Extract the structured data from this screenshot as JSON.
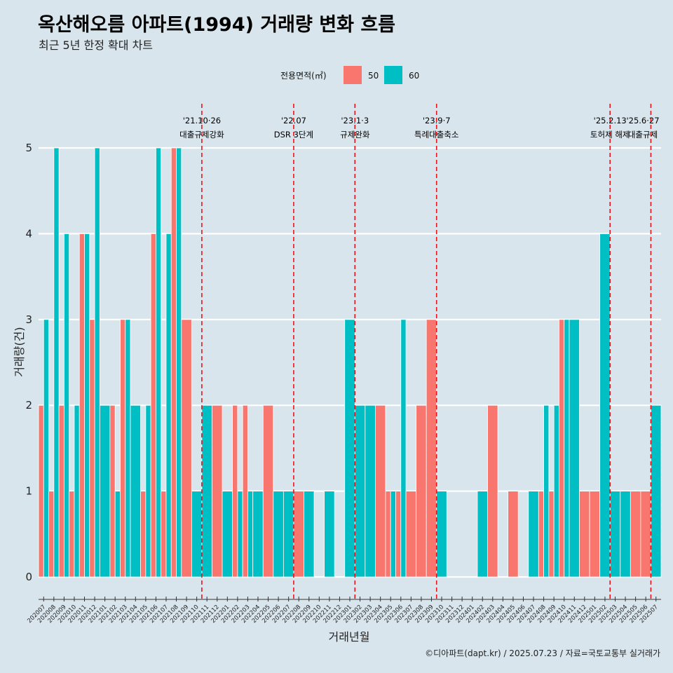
{
  "chart_data": {
    "type": "bar",
    "title": "옥산해오름 아파트(1994) 거래량 변화 흐름",
    "subtitle": "최근 5년 한정 확대 차트",
    "xlabel": "거래년월",
    "ylabel": "거래량(건)",
    "ylim": [
      0,
      5
    ],
    "yticks": [
      "0",
      "1",
      "2",
      "3",
      "4",
      "5"
    ],
    "legend": {
      "title": "전용면적(㎡)",
      "position": "top",
      "entries": [
        {
          "label": "50",
          "color": "#f8766d"
        },
        {
          "label": "60",
          "color": "#00bfc4"
        }
      ]
    },
    "categories": [
      "202007",
      "202008",
      "202009",
      "202010",
      "202011",
      "202012",
      "202101",
      "202102",
      "202103",
      "202104",
      "202105",
      "202106",
      "202107",
      "202108",
      "202109",
      "202110",
      "202111",
      "202112",
      "202201",
      "202202",
      "202203",
      "202204",
      "202205",
      "202206",
      "202207",
      "202208",
      "202209",
      "202210",
      "202211",
      "202212",
      "202301",
      "202302",
      "202303",
      "202304",
      "202305",
      "202306",
      "202307",
      "202308",
      "202309",
      "202310",
      "202311",
      "202312",
      "202401",
      "202402",
      "202403",
      "202404",
      "202405",
      "202406",
      "202407",
      "202408",
      "202409",
      "202410",
      "202411",
      "202412",
      "202501",
      "202502",
      "202503",
      "202504",
      "202505",
      "202506",
      "202507"
    ],
    "series": [
      {
        "name": "50",
        "color": "#f8766d",
        "values": [
          2,
          1,
          2,
          1,
          4,
          3,
          null,
          2,
          3,
          null,
          1,
          4,
          1,
          5,
          3,
          null,
          null,
          2,
          null,
          2,
          2,
          null,
          2,
          null,
          null,
          1,
          null,
          null,
          null,
          null,
          null,
          null,
          null,
          2,
          1,
          1,
          1,
          2,
          3,
          null,
          null,
          null,
          null,
          null,
          2,
          null,
          1,
          null,
          null,
          1,
          1,
          3,
          null,
          1,
          1,
          null,
          null,
          null,
          1,
          1,
          null
        ]
      },
      {
        "name": "60",
        "color": "#00bfc4",
        "values": [
          3,
          5,
          4,
          2,
          4,
          5,
          2,
          1,
          3,
          2,
          2,
          5,
          4,
          5,
          null,
          1,
          2,
          null,
          1,
          1,
          1,
          1,
          null,
          1,
          1,
          null,
          1,
          null,
          1,
          null,
          3,
          2,
          2,
          null,
          1,
          3,
          null,
          null,
          null,
          1,
          null,
          null,
          null,
          1,
          null,
          null,
          null,
          null,
          1,
          2,
          2,
          3,
          3,
          null,
          null,
          4,
          1,
          1,
          null,
          null,
          2
        ]
      }
    ],
    "annotations": [
      {
        "date": "'21.10·26",
        "label": "대출규제강화",
        "after": "202110"
      },
      {
        "date": "'22.07",
        "label": "DSR 3단계",
        "after": "202207"
      },
      {
        "date": "'23.1·3",
        "label": "규제완화",
        "after": "202301"
      },
      {
        "date": "'23.9·7",
        "label": "특례대출축소",
        "after": "202309"
      },
      {
        "date": "'25.2.13",
        "label": "토허제 해제",
        "after": "202502"
      },
      {
        "date": "'25.6·27",
        "label": "대출규제",
        "after": "202506"
      }
    ],
    "caption": "©디아파트(dapt.kr) / 2025.07.23 / 자료=국토교통부 실거래가"
  }
}
